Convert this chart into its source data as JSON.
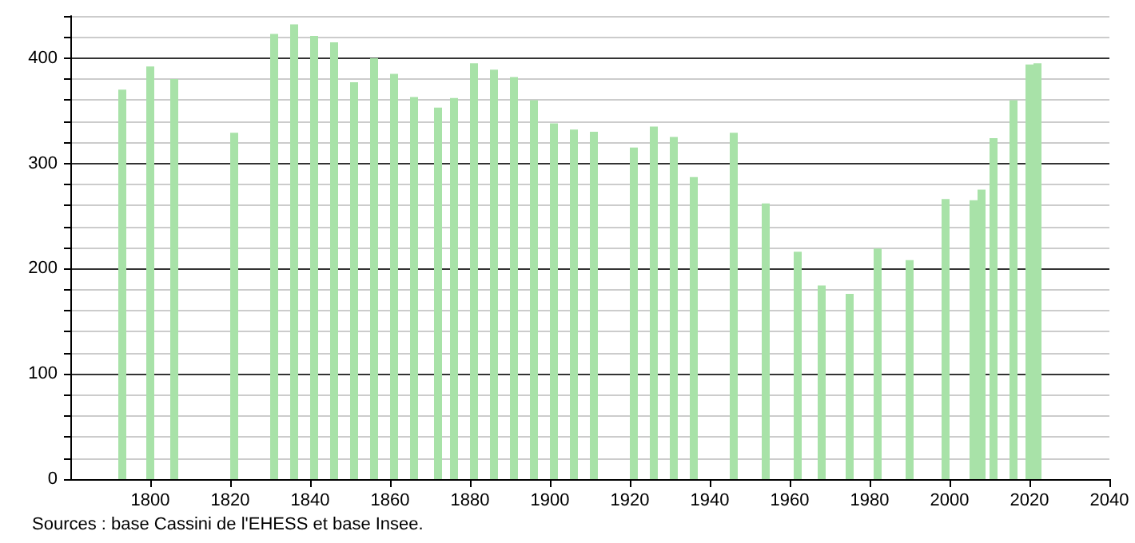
{
  "chart_data": {
    "type": "bar",
    "x": [
      1793,
      1800,
      1806,
      1821,
      1831,
      1836,
      1841,
      1846,
      1851,
      1856,
      1861,
      1866,
      1872,
      1876,
      1881,
      1886,
      1891,
      1896,
      1901,
      1906,
      1911,
      1921,
      1926,
      1931,
      1936,
      1946,
      1954,
      1962,
      1968,
      1975,
      1982,
      1990,
      1999,
      2006,
      2008,
      2011,
      2016,
      2020,
      2022
    ],
    "values": [
      370,
      392,
      380,
      329,
      423,
      432,
      421,
      415,
      377,
      400,
      385,
      363,
      353,
      362,
      395,
      389,
      382,
      360,
      338,
      332,
      330,
      315,
      335,
      325,
      287,
      329,
      262,
      216,
      184,
      176,
      219,
      208,
      266,
      265,
      275,
      324,
      360,
      394,
      395
    ],
    "color": "#a8e2a8",
    "xlim": [
      1780,
      2040
    ],
    "xticks": [
      1800,
      1820,
      1840,
      1860,
      1880,
      1900,
      1920,
      1940,
      1960,
      1980,
      2000,
      2020,
      2040
    ],
    "ylim": [
      0,
      440
    ],
    "yticks": [
      0,
      {
        "value": 20,
        "label": null
      },
      {
        "value": 40,
        "label": null
      },
      {
        "value": 60,
        "label": null
      },
      {
        "value": 80,
        "label": null
      },
      100,
      {
        "value": 120,
        "label": null
      },
      {
        "value": 140,
        "label": null
      },
      {
        "value": 160,
        "label": null
      },
      {
        "value": 180,
        "label": null
      },
      200,
      {
        "value": 220,
        "label": null
      },
      {
        "value": 240,
        "label": null
      },
      {
        "value": 260,
        "label": null
      },
      {
        "value": 280,
        "label": null
      },
      300,
      {
        "value": 320,
        "label": null
      },
      {
        "value": 340,
        "label": null
      },
      {
        "value": 360,
        "label": null
      },
      {
        "value": 380,
        "label": null
      },
      400,
      {
        "value": 420,
        "label": null
      },
      {
        "value": 440,
        "label": null
      }
    ],
    "grid": "y",
    "annotations": [
      "Sources : base Cassini de l'EHESS et base Insee."
    ]
  }
}
